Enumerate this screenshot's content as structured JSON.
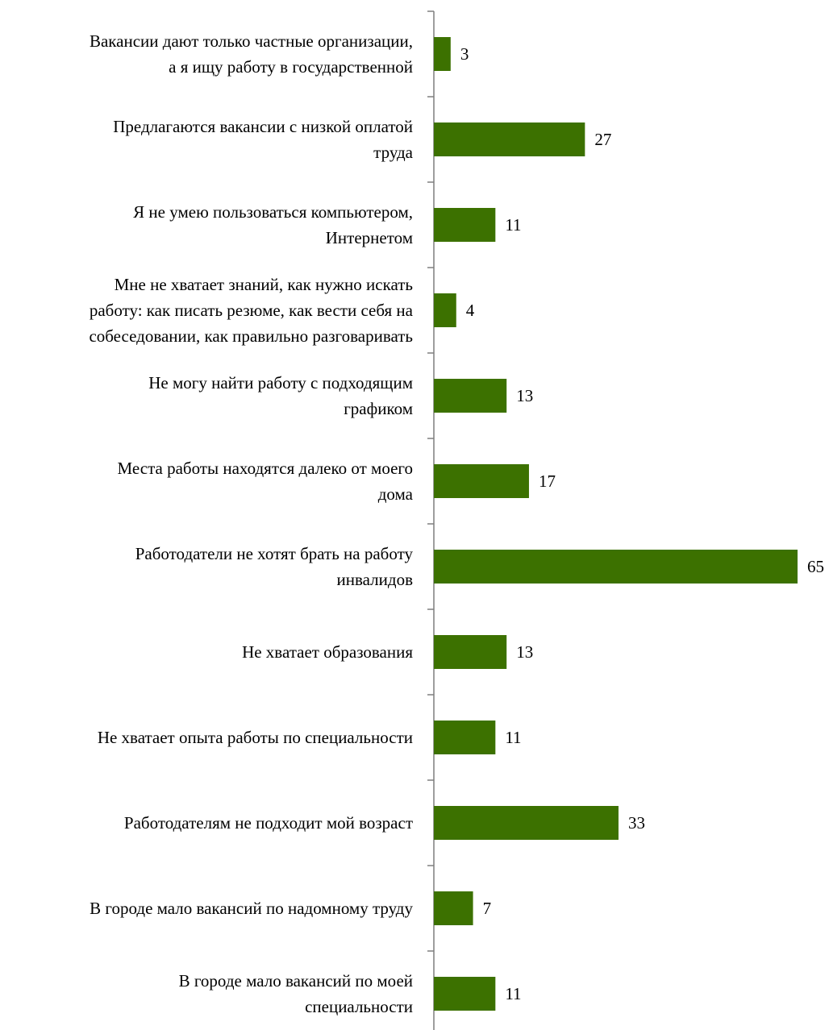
{
  "chart_data": {
    "type": "bar",
    "orientation": "horizontal",
    "title": "",
    "xlabel": "",
    "ylabel": "",
    "categories": [
      "Вакансии дают только частные организации, а я ищу работу в государственной",
      "Предлагаются вакансии с низкой оплатой труда",
      "Я не умею пользоваться компьютером, Интернетом",
      "Мне не хватает знаний, как нужно искать работу: как писать резюме, как вести себя на собеседовании, как правильно разговаривать",
      "Не могу найти работу с подходящим графиком",
      "Места работы находятся далеко от моего дома",
      "Работодатели не хотят брать на работу инвалидов",
      "Не хватает образования",
      "Не хватает опыта работы по специальности",
      "Работодателям не подходит мой возраст",
      "В городе мало вакансий по надомному труду",
      "В городе мало вакансий по моей специальности"
    ],
    "label_lines": [
      [
        "Вакансии дают только частные организации,",
        "а я ищу работу в государственной"
      ],
      [
        "Предлагаются вакансии с низкой оплатой",
        "труда"
      ],
      [
        "Я не умею пользоваться компьютером,",
        "Интернетом"
      ],
      [
        "Мне не хватает знаний, как нужно искать",
        "работу: как писать резюме, как вести себя на",
        "собеседовании, как правильно разговаривать"
      ],
      [
        "Не могу найти работу с подходящим",
        "графиком"
      ],
      [
        "Места работы находятся далеко от моего",
        "дома"
      ],
      [
        "Работодатели не хотят брать на работу",
        "инвалидов"
      ],
      [
        "Не хватает образования"
      ],
      [
        "Не хватает опыта работы по специальности"
      ],
      [
        "Работодателям не подходит мой возраст"
      ],
      [
        "В городе мало вакансий по надомному труду"
      ],
      [
        "В городе мало вакансий по моей",
        "специальности"
      ]
    ],
    "values": [
      3,
      27,
      11,
      4,
      13,
      17,
      65,
      13,
      11,
      33,
      7,
      11
    ],
    "xlim": [
      0,
      65
    ],
    "grid": false,
    "legend": "none",
    "bar_color": "#3c7100",
    "axis_color": "#7f7f7f"
  }
}
